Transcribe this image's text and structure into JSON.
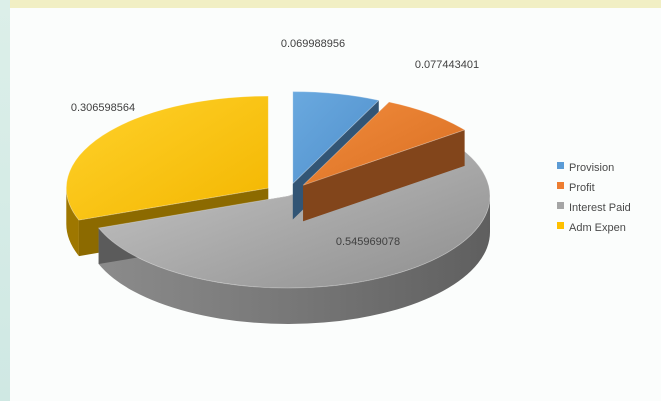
{
  "chart_data": {
    "type": "pie",
    "slices": [
      {
        "label": "Provision",
        "value": 0.069988956,
        "color": "#5b9bd5"
      },
      {
        "label": "Profit",
        "value": 0.077443401,
        "color": "#ed7d31"
      },
      {
        "label": "Interest Paid",
        "value": 0.545969078,
        "color": "#a5a5a5"
      },
      {
        "label": "Adm Expen",
        "value": 0.306598564,
        "color": "#ffc000"
      }
    ],
    "data_labels": [
      "0.069988956",
      "0.077443401",
      "0.545969078",
      "0.306598564"
    ],
    "legend": {
      "placement": "right",
      "items": [
        "Provision",
        "Profit",
        "Interest Paid",
        "Adm Expen"
      ]
    },
    "exploded": true,
    "three_d": true
  }
}
